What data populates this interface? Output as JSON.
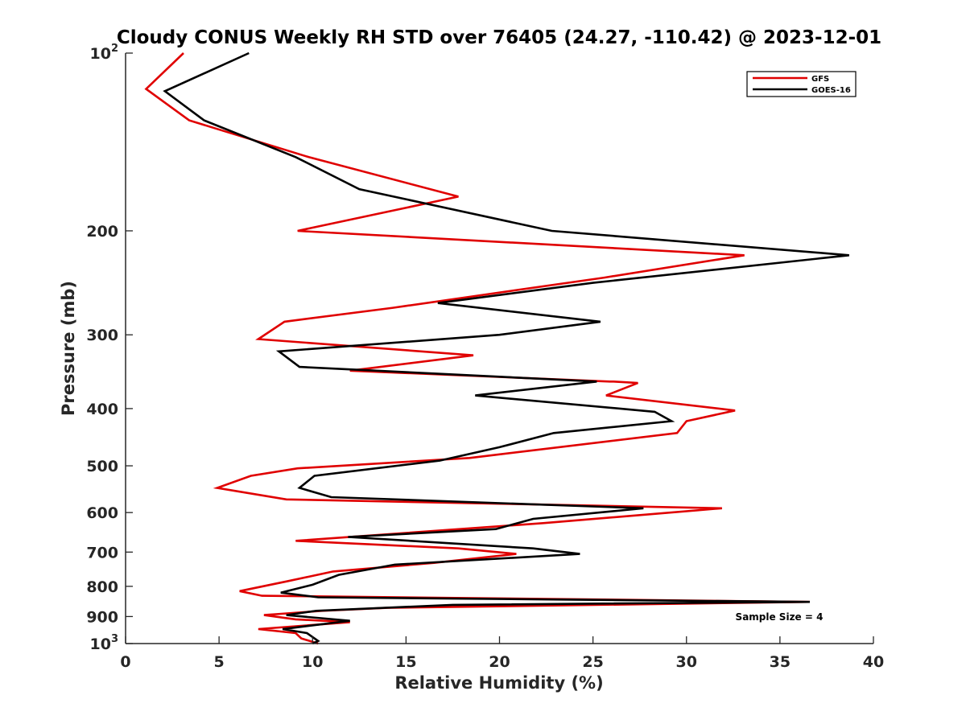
{
  "chart_data": {
    "type": "line",
    "title": "Cloudy CONUS Weekly RH STD over 76405 (24.27, -110.42) @ 2023-12-01",
    "xlabel": "Relative Humidity (%)",
    "ylabel": "Pressure (mb)",
    "xlim": [
      0,
      40
    ],
    "ylim": [
      100,
      1000
    ],
    "y_scale": "log",
    "y_reversed": true,
    "grid": false,
    "legend_position": "top-right",
    "annotation": "Sample Size = 4",
    "x_ticks": [
      "0",
      "5",
      "10",
      "15",
      "20",
      "25",
      "30",
      "35",
      "40"
    ],
    "y_ticks": [
      {
        "value": 100,
        "label": "10",
        "sup": "2"
      },
      {
        "value": 200,
        "label": "200"
      },
      {
        "value": 300,
        "label": "300"
      },
      {
        "value": 400,
        "label": "400"
      },
      {
        "value": 500,
        "label": "500"
      },
      {
        "value": 600,
        "label": "600"
      },
      {
        "value": 700,
        "label": "700"
      },
      {
        "value": 800,
        "label": "800"
      },
      {
        "value": 900,
        "label": "900"
      },
      {
        "value": 1000,
        "label": "10",
        "sup": "3"
      }
    ],
    "series": [
      {
        "name": "GFS",
        "color": "#e00000",
        "points": [
          [
            3.1,
            100
          ],
          [
            1.1,
            115
          ],
          [
            3.4,
            130
          ],
          [
            9.8,
            150
          ],
          [
            17.8,
            175
          ],
          [
            9.2,
            200
          ],
          [
            33.1,
            220
          ],
          [
            25.6,
            240
          ],
          [
            14.3,
            270
          ],
          [
            8.5,
            285
          ],
          [
            7.1,
            305
          ],
          [
            18.6,
            325
          ],
          [
            12.0,
            345
          ],
          [
            25.9,
            360
          ],
          [
            26.1,
            360
          ],
          [
            27.4,
            362
          ],
          [
            25.7,
            380
          ],
          [
            32.6,
            403
          ],
          [
            30.0,
            420
          ],
          [
            29.5,
            440
          ],
          [
            18.4,
            485
          ],
          [
            9.2,
            505
          ],
          [
            6.7,
            520
          ],
          [
            4.9,
            545
          ],
          [
            8.6,
            570
          ],
          [
            31.9,
            590
          ],
          [
            22.4,
            625
          ],
          [
            9.1,
            670
          ],
          [
            17.8,
            690
          ],
          [
            20.9,
            705
          ],
          [
            16.5,
            730
          ],
          [
            11.1,
            755
          ],
          [
            8.6,
            785
          ],
          [
            6.1,
            815
          ],
          [
            7.3,
            830
          ],
          [
            36.6,
            850
          ],
          [
            14.0,
            870
          ],
          [
            10.5,
            880
          ],
          [
            7.4,
            895
          ],
          [
            9.1,
            910
          ],
          [
            12.0,
            920
          ],
          [
            7.1,
            945
          ],
          [
            9.1,
            960
          ],
          [
            9.4,
            980
          ],
          [
            10.3,
            1000
          ]
        ]
      },
      {
        "name": "GOES-16",
        "color": "#000000",
        "points": [
          [
            6.6,
            100
          ],
          [
            2.1,
            116
          ],
          [
            4.2,
            130
          ],
          [
            9.1,
            150
          ],
          [
            12.5,
            170
          ],
          [
            22.8,
            200
          ],
          [
            38.7,
            220
          ],
          [
            25.0,
            245
          ],
          [
            16.7,
            265
          ],
          [
            25.4,
            285
          ],
          [
            20.0,
            300
          ],
          [
            8.2,
            320
          ],
          [
            9.3,
            340
          ],
          [
            25.2,
            360
          ],
          [
            18.7,
            380
          ],
          [
            28.3,
            405
          ],
          [
            29.2,
            420
          ],
          [
            22.9,
            440
          ],
          [
            20.0,
            465
          ],
          [
            16.8,
            490
          ],
          [
            10.1,
            520
          ],
          [
            9.3,
            545
          ],
          [
            11.0,
            565
          ],
          [
            27.7,
            590
          ],
          [
            21.8,
            615
          ],
          [
            19.8,
            640
          ],
          [
            11.9,
            660
          ],
          [
            21.8,
            690
          ],
          [
            24.3,
            705
          ],
          [
            14.4,
            735
          ],
          [
            11.4,
            765
          ],
          [
            10.0,
            795
          ],
          [
            8.3,
            820
          ],
          [
            10.3,
            835
          ],
          [
            36.6,
            850
          ],
          [
            17.5,
            860
          ],
          [
            10.2,
            880
          ],
          [
            8.6,
            895
          ],
          [
            12.0,
            915
          ],
          [
            9.0,
            940
          ],
          [
            8.4,
            945
          ],
          [
            9.7,
            960
          ],
          [
            10.3,
            990
          ],
          [
            10.0,
            1000
          ]
        ]
      }
    ]
  }
}
